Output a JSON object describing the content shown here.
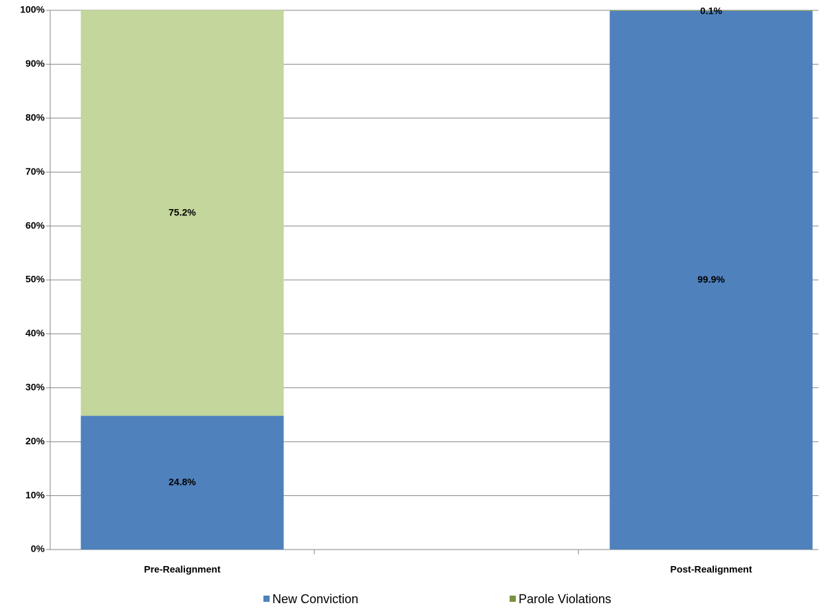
{
  "chart_data": {
    "type": "stacked_bar",
    "categories": [
      "Pre-Realignment",
      "Post-Realignment"
    ],
    "series": [
      {
        "name": "New Conviction",
        "color": "#4f81bd",
        "colors": [
          "#4f81bd",
          "#4f81bd"
        ],
        "values": [
          24.8,
          99.9
        ],
        "value_labels": [
          "24.8%",
          "99.9%"
        ]
      },
      {
        "name": "Parole Violations",
        "color": "#77933c",
        "colors": [
          "#c3d69b",
          "#77933c"
        ],
        "values": [
          75.2,
          0.1
        ],
        "value_labels": [
          "75.2%",
          "0.1%"
        ]
      }
    ],
    "ylim": [
      0,
      100
    ],
    "yticks": [
      {
        "value": 0,
        "label": "0%"
      },
      {
        "value": 10,
        "label": "10%"
      },
      {
        "value": 20,
        "label": "20%"
      },
      {
        "value": 30,
        "label": "30%"
      },
      {
        "value": 40,
        "label": "40%"
      },
      {
        "value": 50,
        "label": "50%"
      },
      {
        "value": 60,
        "label": "60%"
      },
      {
        "value": 70,
        "label": "70%"
      },
      {
        "value": 80,
        "label": "80%"
      },
      {
        "value": 90,
        "label": "90%"
      },
      {
        "value": 100,
        "label": "100%"
      }
    ],
    "grid": true,
    "legend": "bottom"
  }
}
